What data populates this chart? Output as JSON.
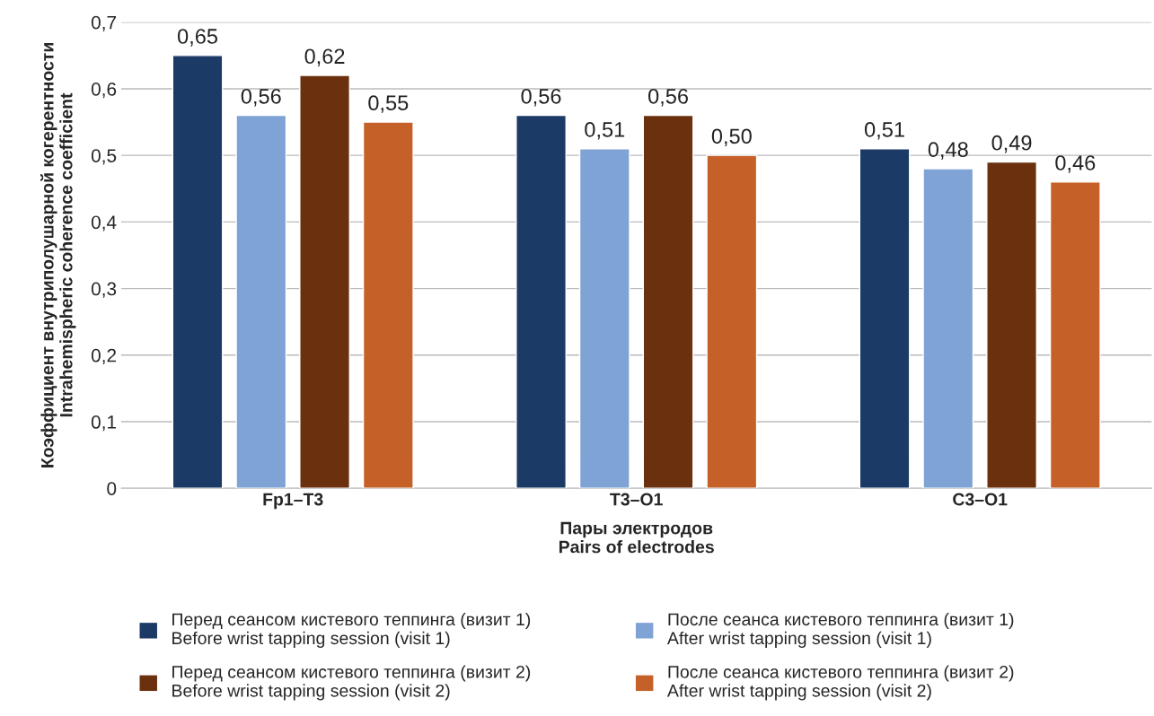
{
  "chart_data": {
    "type": "bar",
    "xlabel": "Пары электродов\nPairs of electrodes",
    "ylabel": "Коэффициент внутриполушарной когерентности\nIntrahemispheric coherence coefficient",
    "categories": [
      "Fp1–T3",
      "T3–O1",
      "C3–O1"
    ],
    "series": [
      {
        "name": "Перед сеансом кистевого теппинга (визит 1)\nBefore wrist tapping session (visit 1)",
        "color": "#1b3a66",
        "values": [
          0.65,
          0.56,
          0.51
        ],
        "value_labels": [
          "0,65",
          "0,56",
          "0,51"
        ]
      },
      {
        "name": "После сеанса кистевого теппинга (визит 1)\nAfter wrist tapping session (visit 1)",
        "color": "#7fa3d4",
        "values": [
          0.56,
          0.51,
          0.48
        ],
        "value_labels": [
          "0,56",
          "0,51",
          "0,48"
        ]
      },
      {
        "name": "Перед сеансом кистевого теппинга (визит 2)\nBefore wrist tapping session (visit 2)",
        "color": "#6b300e",
        "values": [
          0.62,
          0.56,
          0.49
        ],
        "value_labels": [
          "0,62",
          "0,56",
          "0,49"
        ]
      },
      {
        "name": "После сеанса кистевого теппинга (визит 2)\nAfter wrist tapping session (visit 2)",
        "color": "#c46028",
        "values": [
          0.55,
          0.5,
          0.46
        ],
        "value_labels": [
          "0,55",
          "0,50",
          "0,46"
        ]
      }
    ],
    "ylim": [
      0,
      0.7
    ],
    "yticks": [
      0,
      {
        "value": 0.1,
        "label": "0,1"
      },
      {
        "value": 0.2,
        "label": "0,2"
      },
      {
        "value": 0.3,
        "label": "0,3"
      },
      {
        "value": 0.4,
        "label": "0,4"
      },
      {
        "value": 0.5,
        "label": "0,5"
      },
      {
        "value": 0.6,
        "label": "0,6"
      },
      {
        "value": 0.7,
        "label": "0,7"
      }
    ],
    "grid": "y",
    "legend": "bottom"
  }
}
